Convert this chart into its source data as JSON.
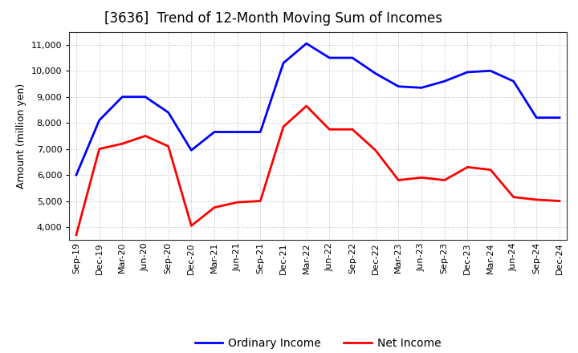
{
  "title": "[3636]  Trend of 12-Month Moving Sum of Incomes",
  "ylabel": "Amount (million yen)",
  "background_color": "#ffffff",
  "grid_color": "#aaaaaa",
  "x_labels": [
    "Sep-19",
    "Dec-19",
    "Mar-20",
    "Jun-20",
    "Sep-20",
    "Dec-20",
    "Mar-21",
    "Jun-21",
    "Sep-21",
    "Dec-21",
    "Mar-22",
    "Jun-22",
    "Sep-22",
    "Dec-22",
    "Mar-23",
    "Jun-23",
    "Sep-23",
    "Dec-23",
    "Mar-24",
    "Jun-24",
    "Sep-24",
    "Dec-24"
  ],
  "ordinary_income": [
    6000,
    8100,
    9000,
    9000,
    8400,
    6950,
    7650,
    7650,
    7650,
    10300,
    11050,
    10500,
    10500,
    9900,
    9400,
    9350,
    9600,
    9950,
    10000,
    9600,
    8200,
    8200
  ],
  "net_income": [
    3700,
    7000,
    7200,
    7500,
    7100,
    4050,
    4750,
    4950,
    5000,
    7850,
    8650,
    7750,
    7750,
    6950,
    5800,
    5900,
    5800,
    6300,
    6200,
    5150,
    5050,
    5000
  ],
  "ordinary_color": "#0000ff",
  "net_color": "#ff0000",
  "ylim": [
    3500,
    11500
  ],
  "yticks": [
    4000,
    5000,
    6000,
    7000,
    8000,
    9000,
    10000,
    11000
  ],
  "line_width": 2.0,
  "title_fontsize": 12,
  "legend_fontsize": 10,
  "tick_fontsize": 8,
  "ylabel_fontsize": 9
}
